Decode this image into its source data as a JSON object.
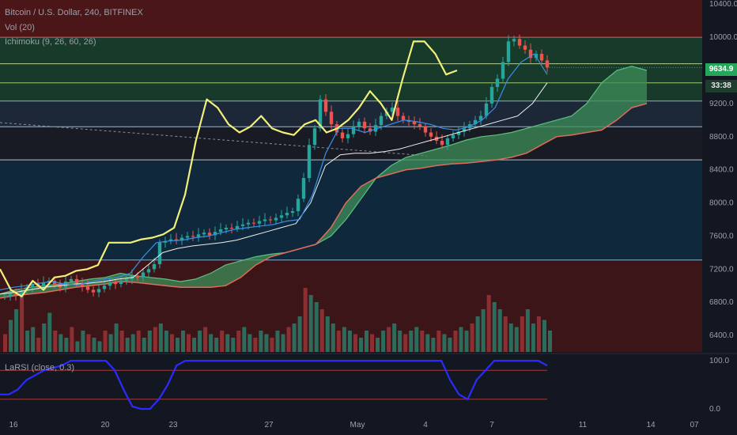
{
  "chart_data": {
    "type": "candlestick",
    "legend": {
      "symbol": "Bitcoin / U.S. Dollar, 240, BITFINEX",
      "vol": "Vol (20)",
      "ichimoku": "Ichimoku (9, 26, 60, 26)"
    },
    "price_axis": {
      "ticks": [
        "10400.0",
        "10000.0",
        "9200.0",
        "8800.0",
        "8400.0",
        "8000.0",
        "7600.0",
        "7200.0",
        "6800.0",
        "6400.0"
      ],
      "range": [
        6200,
        10450
      ]
    },
    "x_axis": {
      "ticks": [
        "16",
        "20",
        "23",
        "27",
        "May",
        "4",
        "7",
        "11",
        "14",
        "07"
      ]
    },
    "current_price": "9634.9",
    "countdown": "33:38",
    "horizontal_levels": [
      10000,
      9680,
      9450,
      9230,
      8920,
      8520,
      7310
    ],
    "zones": [
      {
        "from": 10450,
        "to": 10000,
        "color": "#4a1618"
      },
      {
        "from": 10000,
        "to": 9230,
        "color": "#173a2a"
      },
      {
        "from": 9230,
        "to": 8920,
        "color": "#1c2737"
      },
      {
        "from": 8920,
        "to": 8520,
        "color": "#181b23"
      },
      {
        "from": 8520,
        "to": 7310,
        "color": "#10283c"
      },
      {
        "from": 7310,
        "to": 6200,
        "color": "#3c1518"
      }
    ],
    "close_series": [
      6870,
      6900,
      6880,
      6950,
      6980,
      7020,
      6990,
      7040,
      7060,
      7010,
      6980,
      7050,
      7080,
      7030,
      6990,
      6950,
      6920,
      6960,
      7000,
      7040,
      7020,
      7060,
      7080,
      7120,
      7100,
      7160,
      7200,
      7260,
      7520,
      7540,
      7560,
      7550,
      7580,
      7600,
      7590,
      7620,
      7640,
      7610,
      7650,
      7680,
      7700,
      7690,
      7720,
      7740,
      7760,
      7750,
      7780,
      7800,
      7790,
      7820,
      7850,
      7880,
      7900,
      8050,
      8300,
      8700,
      8900,
      9250,
      9100,
      8950,
      8850,
      8780,
      8830,
      8920,
      8980,
      8900,
      8860,
      8940,
      9050,
      9100,
      9150,
      9050,
      9000,
      8980,
      8950,
      8920,
      8850,
      8800,
      8750,
      8700,
      8780,
      8820,
      8860,
      8900,
      8950,
      9000,
      9050,
      9200,
      9400,
      9500,
      9700,
      9950,
      9980,
      9900,
      9850,
      9750,
      9800,
      9720,
      9634.9
    ],
    "ichimoku": {
      "chikou": [
        7200,
        6950,
        6870,
        7060,
        6950,
        7100,
        7120,
        7180,
        7200,
        7250,
        7520,
        7520,
        7520,
        7560,
        7580,
        7620,
        7700,
        8100,
        8750,
        9250,
        9150,
        8950,
        8850,
        8920,
        9050,
        8900,
        8850,
        8820,
        8950,
        9000,
        8850,
        8900,
        9000,
        9150,
        9350,
        9200,
        9000,
        9500,
        9950,
        9950,
        9800,
        9550,
        9600
      ],
      "tenkan": [
        6950,
        6980,
        7000,
        7030,
        7050,
        7020,
        7010,
        7050,
        7080,
        7100,
        7150,
        7350,
        7520,
        7540,
        7550,
        7580,
        7600,
        7640,
        7680,
        7700,
        7720,
        7740,
        7780,
        7800,
        8100,
        8600,
        8900,
        8900,
        8850,
        8900,
        8950,
        9000,
        8980,
        8950,
        8900,
        8880,
        8920,
        9000,
        9150,
        9500,
        9700,
        9800,
        9550
      ],
      "kijun": [
        6900,
        6920,
        6950,
        6980,
        7000,
        7020,
        7030,
        7050,
        7080,
        7100,
        7250,
        7400,
        7450,
        7480,
        7500,
        7520,
        7550,
        7600,
        7650,
        7700,
        7750,
        8000,
        8450,
        8580,
        8600,
        8600,
        8620,
        8650,
        8700,
        8750,
        8800,
        8850,
        8900,
        8950,
        9000,
        9050,
        9200,
        9450
      ],
      "span_a": [
        6900,
        6950,
        6980,
        7000,
        7020,
        7050,
        7080,
        7100,
        7150,
        7120,
        7100,
        7080,
        7050,
        7080,
        7150,
        7250,
        7300,
        7350,
        7380,
        7400,
        7450,
        7500,
        7600,
        7800,
        8050,
        8300,
        8450,
        8550,
        8600,
        8650,
        8700,
        8760,
        8800,
        8820,
        8850,
        8900,
        8950,
        9000,
        9050,
        9200,
        9450,
        9600,
        9650,
        9600
      ],
      "span_b": [
        6850,
        6880,
        6900,
        6920,
        6950,
        6980,
        7000,
        7020,
        7050,
        7040,
        7020,
        7000,
        6980,
        6980,
        6980,
        7000,
        7100,
        7250,
        7350,
        7400,
        7450,
        7500,
        7700,
        8000,
        8200,
        8300,
        8350,
        8400,
        8420,
        8450,
        8470,
        8480,
        8500,
        8520,
        8550,
        8600,
        8700,
        8800,
        8820,
        8850,
        8880,
        9000,
        9150,
        9200
      ]
    },
    "volume": [
      0.25,
      0.45,
      0.6,
      0.9,
      0.3,
      0.35,
      0.2,
      0.4,
      0.55,
      0.3,
      0.25,
      0.2,
      0.35,
      0.15,
      0.3,
      0.25,
      0.2,
      0.15,
      0.3,
      0.25,
      0.4,
      0.3,
      0.2,
      0.25,
      0.3,
      0.2,
      0.3,
      0.35,
      0.4,
      0.3,
      0.25,
      0.2,
      0.3,
      0.25,
      0.2,
      0.3,
      0.35,
      0.25,
      0.2,
      0.3,
      0.25,
      0.2,
      0.3,
      0.35,
      0.25,
      0.2,
      0.3,
      0.25,
      0.2,
      0.3,
      0.25,
      0.35,
      0.4,
      0.5,
      0.9,
      0.8,
      0.7,
      0.6,
      0.5,
      0.4,
      0.3,
      0.35,
      0.3,
      0.25,
      0.2,
      0.3,
      0.25,
      0.2,
      0.3,
      0.35,
      0.4,
      0.3,
      0.25,
      0.3,
      0.35,
      0.3,
      0.25,
      0.2,
      0.3,
      0.25,
      0.2,
      0.3,
      0.35,
      0.3,
      0.4,
      0.5,
      0.6,
      0.8,
      0.7,
      0.6,
      0.5,
      0.4,
      0.35,
      0.5,
      0.6,
      0.4,
      0.5,
      0.45,
      0.3
    ],
    "larsi": {
      "label": "LaRSI (close, 0.3)",
      "ticks": [
        "100.0",
        "0.0"
      ],
      "levels": [
        80,
        20
      ],
      "values": [
        0.3,
        0.3,
        0.4,
        0.6,
        0.7,
        0.8,
        0.85,
        0.9,
        1.0,
        1.0,
        1.0,
        1.0,
        1.0,
        0.8,
        0.4,
        0.05,
        0.0,
        0.0,
        0.2,
        0.5,
        0.9,
        1.0,
        1.0,
        1.0,
        1.0,
        1.0,
        1.0,
        1.0,
        1.0,
        1.0,
        1.0,
        1.0,
        1.0,
        1.0,
        1.0,
        1.0,
        1.0,
        1.0,
        1.0,
        1.0,
        1.0,
        1.0,
        1.0,
        1.0,
        1.0,
        1.0,
        1.0,
        1.0,
        1.0,
        1.0,
        1.0,
        0.6,
        0.3,
        0.2,
        0.6,
        0.8,
        1.0,
        1.0,
        1.0,
        1.0,
        1.0,
        1.0,
        0.9
      ],
      "range": [
        -5,
        110
      ]
    }
  }
}
